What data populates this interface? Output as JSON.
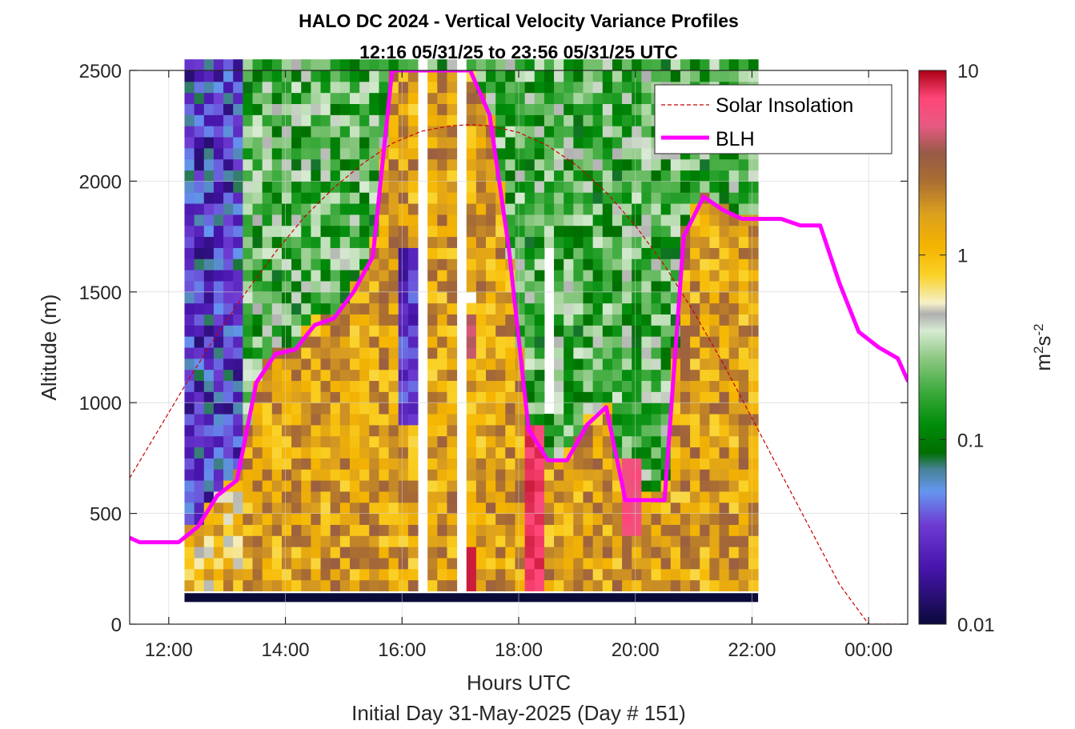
{
  "chart_data": {
    "type": "heatmap",
    "title_line1": "HALO DC 2024 - Vertical Velocity Variance Profiles",
    "title_line2": "12:16 05/31/25 to 23:56 05/31/25  UTC",
    "xlabel": "Hours UTC",
    "xlabel2": "Initial Day 31-May-2025 (Day # 151)",
    "ylabel": "Altitude (m)",
    "xlim": [
      11.33,
      24.67
    ],
    "ylim": [
      0,
      2500
    ],
    "x_ticks": [
      {
        "value": 12,
        "label": "12:00"
      },
      {
        "value": 14,
        "label": "14:00"
      },
      {
        "value": 16,
        "label": "16:00"
      },
      {
        "value": 18,
        "label": "18:00"
      },
      {
        "value": 20,
        "label": "20:00"
      },
      {
        "value": 22,
        "label": "22:00"
      },
      {
        "value": 24,
        "label": "00:00"
      }
    ],
    "y_ticks": [
      {
        "value": 0,
        "label": "0"
      },
      {
        "value": 500,
        "label": "500"
      },
      {
        "value": 1000,
        "label": "1000"
      },
      {
        "value": 1500,
        "label": "1500"
      },
      {
        "value": 2000,
        "label": "2000"
      },
      {
        "value": 2500,
        "label": "2500"
      }
    ],
    "grid": true,
    "colorbar": {
      "label": "m²s⁻²",
      "scale": "log",
      "range": [
        0.01,
        10
      ],
      "ticks": [
        {
          "value": 0.01,
          "label": "0.01"
        },
        {
          "value": 0.1,
          "label": "0.1"
        },
        {
          "value": 1,
          "label": "1"
        },
        {
          "value": 10,
          "label": "10"
        }
      ]
    },
    "legend": {
      "placement": "top-right",
      "entries": [
        "Solar Insolation",
        "BLH"
      ]
    },
    "heatmap": {
      "time_start": 12.27,
      "time_step": 0.1667,
      "alt_start": 150,
      "alt_step": 50,
      "n_times": 59,
      "n_alts": 48
    },
    "series": [
      {
        "name": "BLH",
        "color": "#ff00ff",
        "x": [
          11.33,
          11.5,
          11.83,
          12.17,
          12.5,
          12.83,
          13.17,
          13.5,
          13.83,
          14.17,
          14.5,
          14.83,
          15.17,
          15.5,
          15.83,
          16.17,
          16.5,
          16.83,
          17.17,
          17.5,
          17.83,
          18.17,
          18.5,
          18.83,
          19.17,
          19.5,
          19.83,
          20.17,
          20.5,
          20.83,
          21.17,
          21.5,
          21.83,
          22.17,
          22.5,
          22.83,
          23.17,
          23.5,
          23.83,
          24.17,
          24.5,
          24.67
        ],
        "y": [
          390,
          370,
          370,
          370,
          440,
          580,
          650,
          1090,
          1220,
          1240,
          1350,
          1380,
          1500,
          1660,
          2500,
          2500,
          2500,
          2500,
          2500,
          2300,
          1700,
          880,
          740,
          740,
          900,
          980,
          560,
          560,
          560,
          1750,
          1930,
          1870,
          1830,
          1830,
          1830,
          1800,
          1800,
          1540,
          1320,
          1250,
          1200,
          1100
        ]
      },
      {
        "name": "Solar Insolation",
        "color": "#cc0000",
        "x": [
          11.33,
          11.83,
          12.33,
          12.83,
          13.33,
          13.83,
          14.33,
          14.83,
          15.33,
          15.83,
          16.33,
          16.83,
          17.17,
          17.5,
          18.0,
          18.5,
          19.0,
          19.5,
          20.0,
          20.5,
          21.0,
          21.5,
          22.0,
          22.5,
          23.0,
          23.5,
          24.0,
          24.33,
          24.67
        ],
        "y": [
          660,
          880,
          1100,
          1310,
          1500,
          1680,
          1840,
          1970,
          2080,
          2170,
          2225,
          2250,
          2255,
          2250,
          2220,
          2160,
          2070,
          1950,
          1800,
          1620,
          1410,
          1180,
          930,
          680,
          430,
          180,
          0,
          0,
          0
        ]
      }
    ]
  }
}
